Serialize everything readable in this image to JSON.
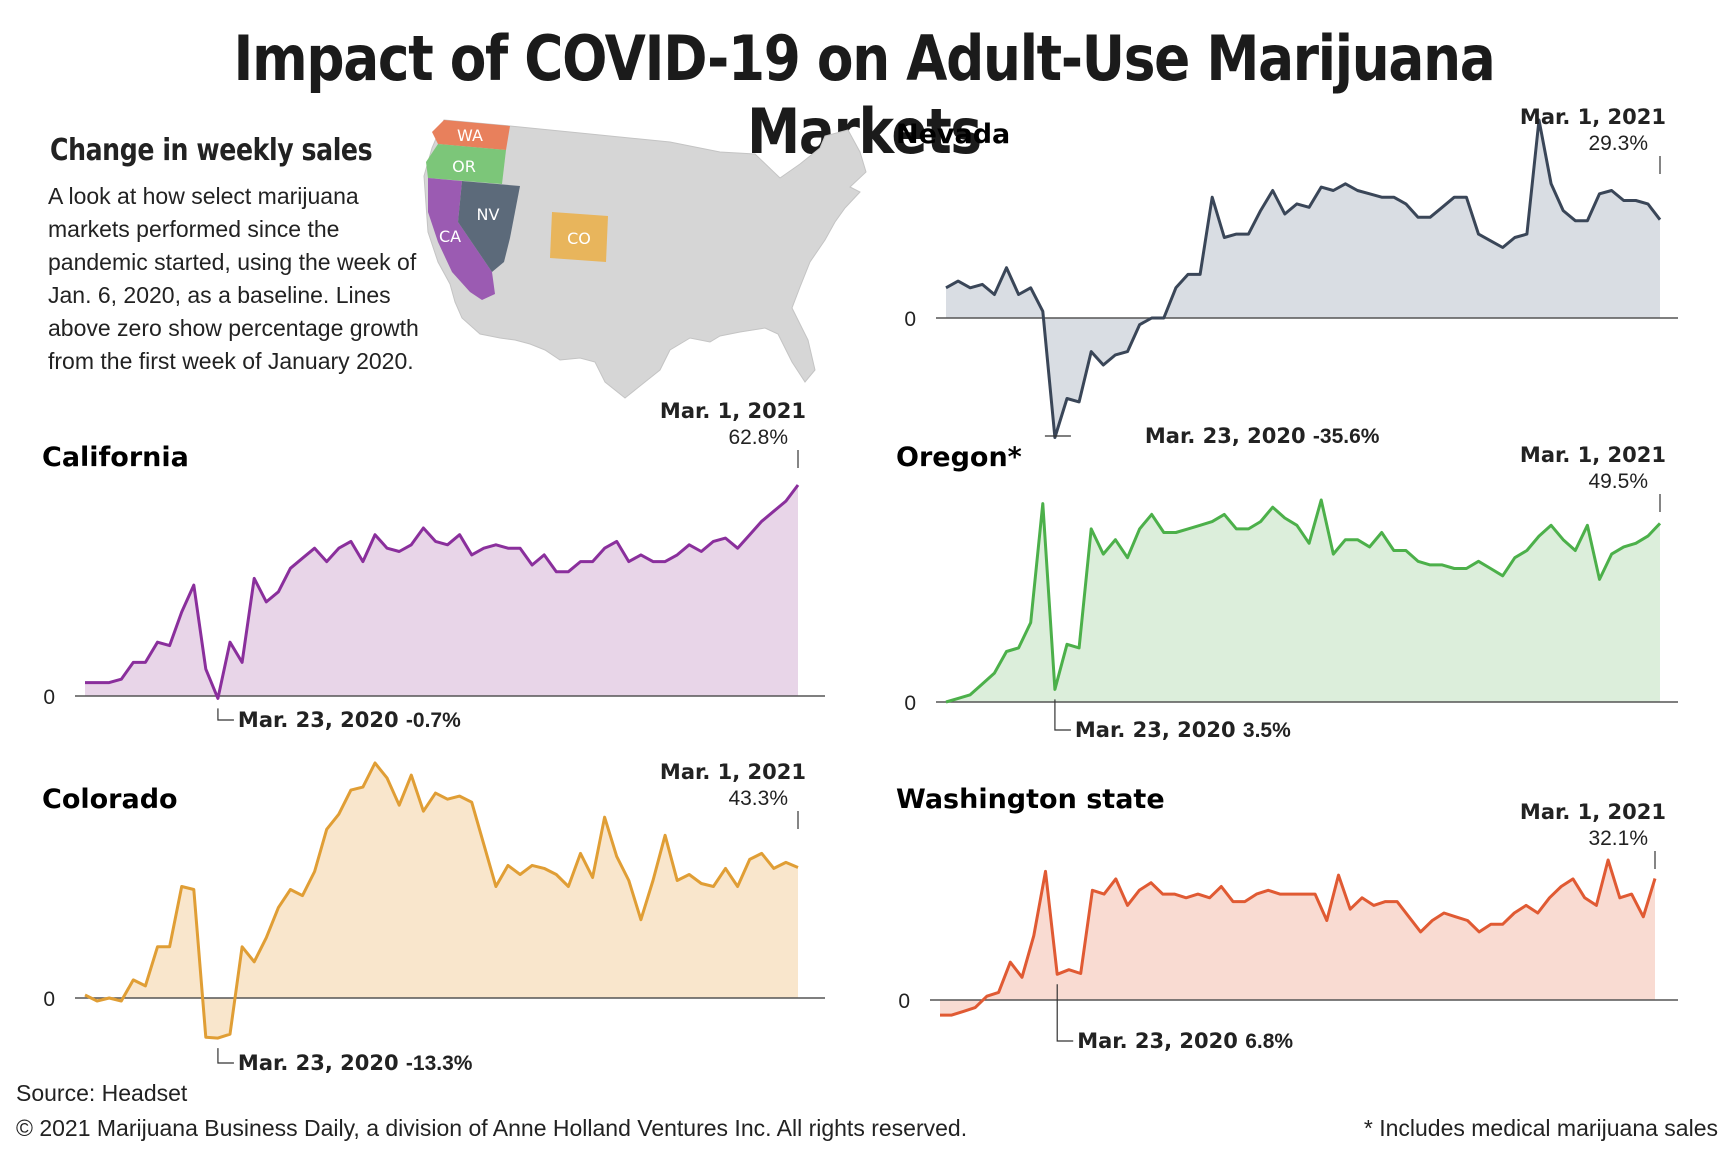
{
  "title": "Impact of COVID-19 on Adult-Use Marijuana Markets",
  "intro": {
    "heading": "Change in weekly sales",
    "text": "A look at how select marijuana markets performed since the pandemic started, using the week of Jan. 6, 2020, as a baseline. Lines above zero show percentage growth from the first week of January 2020."
  },
  "map": {
    "states": [
      {
        "abbr": "WA",
        "color": "#e8805c"
      },
      {
        "abbr": "OR",
        "color": "#7cc679"
      },
      {
        "abbr": "CA",
        "color": "#9b5bb2"
      },
      {
        "abbr": "NV",
        "color": "#5c6a7a"
      },
      {
        "abbr": "CO",
        "color": "#e8b55c"
      }
    ]
  },
  "colors": {
    "california": "#8a2f9c",
    "colorado": "#e09e35",
    "nevada": "#3a4658",
    "oregon": "#4cb04a",
    "washington": "#e05a33"
  },
  "chart_data": [
    {
      "type": "area",
      "name": "California",
      "ylim": [
        -2,
        70
      ],
      "low": {
        "date": "Mar. 23, 2020",
        "value_label": "-0.7%",
        "value": -0.7
      },
      "high": {
        "date": "Mar. 1, 2021",
        "value_label": "62.8%",
        "value": 62.8
      },
      "zero_label": "0",
      "values": [
        4,
        4,
        4,
        5,
        10,
        10,
        16,
        15,
        25,
        33,
        8,
        -0.7,
        16,
        10,
        35,
        28,
        31,
        38,
        41,
        44,
        40,
        44,
        46,
        40,
        48,
        44,
        43,
        45,
        50,
        46,
        45,
        48,
        42,
        44,
        45,
        44,
        44,
        39,
        42,
        37,
        37,
        40,
        40,
        44,
        46,
        40,
        42,
        40,
        40,
        42,
        45,
        43,
        46,
        47,
        44,
        48,
        52,
        55,
        58,
        62.8
      ]
    },
    {
      "type": "area",
      "name": "Colorado",
      "ylim": [
        -16,
        75
      ],
      "low": {
        "date": "Mar. 23, 2020",
        "value_label": "-13.3%",
        "value": -13.3
      },
      "high": {
        "date": "Mar. 1, 2021",
        "value_label": "43.3%",
        "value": 43.3
      },
      "zero_label": "0",
      "values": [
        1,
        -1,
        0,
        -1,
        6,
        4,
        17,
        17,
        37,
        36,
        -13,
        -13.3,
        -12,
        17,
        12,
        20,
        30,
        36,
        34,
        42,
        56,
        61,
        69,
        70,
        78,
        73,
        64,
        74,
        62,
        68,
        66,
        67,
        65,
        51,
        37,
        44,
        41,
        44,
        43,
        41,
        37,
        48,
        40,
        60,
        47,
        39,
        26,
        39,
        54,
        39,
        41,
        38,
        37,
        43,
        37,
        46,
        48,
        43,
        45,
        43.3
      ]
    },
    {
      "type": "area",
      "name": "Nevada",
      "ylim": [
        -38,
        60
      ],
      "low": {
        "date": "Mar. 23, 2020",
        "value_label": "-35.6%",
        "value": -35.6
      },
      "high": {
        "date": "Mar. 1, 2021",
        "value_label": "29.3%",
        "value": 29.3
      },
      "zero_label": "0",
      "values": [
        9,
        11,
        9,
        10,
        7,
        15,
        7,
        9,
        2,
        -35.6,
        -24,
        -25,
        -10,
        -14,
        -11,
        -10,
        -2,
        0,
        0,
        9,
        13,
        13,
        36,
        24,
        25,
        25,
        32,
        38,
        31,
        34,
        33,
        39,
        38,
        40,
        38,
        37,
        36,
        36,
        34,
        30,
        30,
        33,
        36,
        36,
        25,
        23,
        21,
        24,
        25,
        59,
        40,
        32,
        29,
        29,
        37,
        38,
        35,
        35,
        34,
        29.3
      ]
    },
    {
      "type": "area",
      "name": "Oregon*",
      "ylim": [
        -2,
        70
      ],
      "low": {
        "date": "Mar. 23, 2020",
        "value_label": "3.5%",
        "value": 3.5
      },
      "high": {
        "date": "Mar. 1, 2021",
        "value_label": "49.5%",
        "value": 49.5
      },
      "zero_label": "0",
      "values": [
        0,
        1,
        2,
        5,
        8,
        14,
        15,
        22,
        55,
        3.5,
        16,
        15,
        48,
        41,
        45,
        40,
        48,
        52,
        47,
        47,
        48,
        49,
        50,
        52,
        48,
        48,
        50,
        54,
        51,
        49,
        44,
        56,
        41,
        45,
        45,
        43,
        47,
        42,
        42,
        39,
        38,
        38,
        37,
        37,
        39,
        37,
        35,
        40,
        42,
        46,
        49,
        45,
        42,
        49,
        34,
        41,
        43,
        44,
        46,
        49.5
      ]
    },
    {
      "type": "area",
      "name": "Washington state",
      "ylim": [
        -3,
        52
      ],
      "low": {
        "date": "Mar. 23, 2020",
        "value_label": "6.8%",
        "value": 6.8
      },
      "high": {
        "date": "Mar. 1, 2021",
        "value_label": "32.1%",
        "value": 32.1
      },
      "zero_label": "0",
      "values": [
        -4,
        -4,
        -3,
        -2,
        1,
        2,
        10,
        6,
        17,
        34,
        6.8,
        8,
        7,
        29,
        28,
        32,
        25,
        29,
        31,
        28,
        28,
        27,
        28,
        27,
        30,
        26,
        26,
        28,
        29,
        28,
        28,
        28,
        28,
        21,
        33,
        24,
        27,
        25,
        26,
        26,
        22,
        18,
        21,
        23,
        22,
        21,
        18,
        20,
        20,
        23,
        25,
        23,
        27,
        30,
        32,
        27,
        25,
        37,
        27,
        28,
        22,
        32.1
      ]
    }
  ],
  "footer": {
    "source": "Source: Headset",
    "copyright": "© 2021 Marijuana Business Daily, a division of Anne Holland Ventures Inc. All rights reserved.",
    "footnote": "* Includes medical marijuana sales"
  }
}
